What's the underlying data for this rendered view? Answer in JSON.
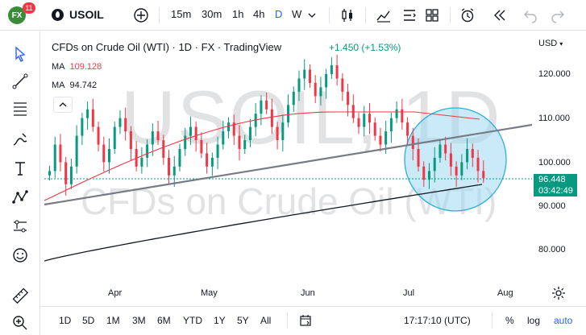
{
  "topbar": {
    "badge_count": "11",
    "symbol": "USOIL",
    "intervals": [
      "15m",
      "30m",
      "1h",
      "4h",
      "D",
      "W"
    ],
    "active_interval": "D"
  },
  "legend": {
    "title": "CFDs on Crude Oil (WTI) · 1D · FX · TradingView",
    "change": "+1.450 (+1.53%)",
    "ma1_label": "MA",
    "ma1_value": "109.128",
    "ma1_color": "#f23645",
    "ma2_label": "MA",
    "ma2_value": "94.742",
    "ma2_color": "#131722"
  },
  "watermark": {
    "line1": "USOIL, 1D",
    "line2": "CFDs on Crude Oil (WTI)"
  },
  "price_axis": {
    "currency": "USD",
    "labels": [
      "120.000",
      "110.000",
      "100.000",
      "90.000",
      "80.000"
    ],
    "current_price": "96.448",
    "countdown": "03:42:49"
  },
  "time_axis": {
    "labels": [
      "Apr",
      "May",
      "Jun",
      "Jul",
      "Aug"
    ]
  },
  "bottombar": {
    "ranges": [
      "1D",
      "5D",
      "1M",
      "3M",
      "6M",
      "YTD",
      "1Y",
      "5Y",
      "All"
    ],
    "clock": "17:17:10 (UTC)",
    "percent": "%",
    "log": "log",
    "auto": "auto"
  },
  "colors": {
    "up": "#089981",
    "down": "#f23645",
    "circle_fill": "#9ed8f0",
    "trendline": "#787b86"
  }
}
